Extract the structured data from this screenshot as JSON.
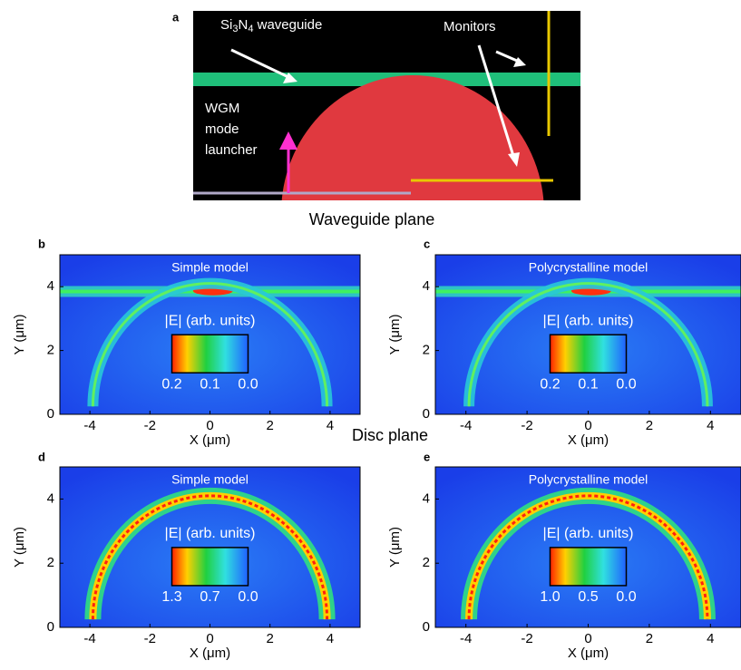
{
  "panel_a": {
    "label": "a",
    "waveguide_label": {
      "part1": "Si",
      "sub1": "3",
      "part2": "N",
      "sub2": "4",
      "part3": " waveguide"
    },
    "monitors_label": "Monitors",
    "launcher_label": [
      "WGM",
      "mode",
      "launcher"
    ]
  },
  "caption_waveguide": "Waveguide plane",
  "caption_disc": "Disc plane",
  "panels": [
    {
      "label": "b",
      "model": "Simple model",
      "colorbar_title": "|E| (arb. units)",
      "colorbar_ticks": [
        "0.2",
        "0.1",
        "0.0"
      ],
      "x_label": "X (μm)",
      "y_label": "Y (μm)",
      "xlim": [
        -5,
        5
      ],
      "ylim": [
        0,
        5
      ],
      "x_ticks": [
        -4,
        -2,
        0,
        2,
        4
      ],
      "y_ticks": [
        0,
        2,
        4
      ]
    },
    {
      "label": "c",
      "model": "Polycrystalline model",
      "colorbar_title": "|E| (arb. units)",
      "colorbar_ticks": [
        "0.2",
        "0.1",
        "0.0"
      ],
      "x_label": "X (μm)",
      "y_label": "Y (μm)",
      "xlim": [
        -5,
        5
      ],
      "ylim": [
        0,
        5
      ],
      "x_ticks": [
        -4,
        -2,
        0,
        2,
        4
      ],
      "y_ticks": [
        0,
        2,
        4
      ]
    },
    {
      "label": "d",
      "model": "Simple model",
      "colorbar_title": "|E| (arb. units)",
      "colorbar_ticks": [
        "1.3",
        "0.7",
        "0.0"
      ],
      "x_label": "X (μm)",
      "y_label": "Y (μm)",
      "xlim": [
        -5,
        5
      ],
      "ylim": [
        0,
        5
      ],
      "x_ticks": [
        -4,
        -2,
        0,
        2,
        4
      ],
      "y_ticks": [
        0,
        2,
        4
      ]
    },
    {
      "label": "e",
      "model": "Polycrystalline model",
      "colorbar_title": "|E| (arb. units)",
      "colorbar_ticks": [
        "1.0",
        "0.5",
        "0.0"
      ],
      "x_label": "X (μm)",
      "y_label": "Y (μm)",
      "xlim": [
        -5,
        5
      ],
      "ylim": [
        0,
        5
      ],
      "x_ticks": [
        -4,
        -2,
        0,
        2,
        4
      ],
      "y_ticks": [
        0,
        2,
        4
      ]
    }
  ]
}
